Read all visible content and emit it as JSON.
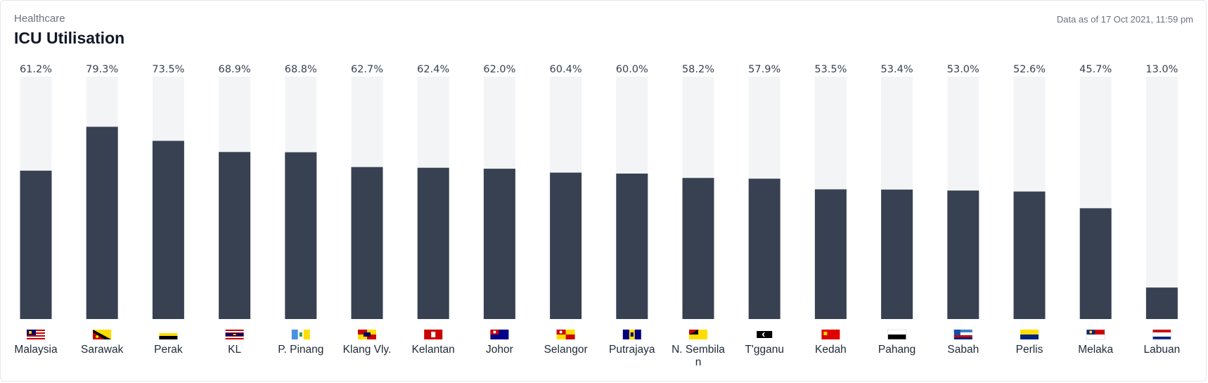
{
  "header": {
    "category": "Healthcare",
    "title": "ICU Utilisation",
    "timestamp": "Data as of 17 Oct 2021, 11:59 pm"
  },
  "colors": {
    "bar_fill": "#374151",
    "bar_track": "#f3f4f6"
  },
  "chart_data": {
    "type": "bar",
    "ylim": [
      0,
      100
    ],
    "unit": "%",
    "grid": false,
    "categories": [
      "Malaysia",
      "Sarawak",
      "Perak",
      "KL",
      "P. Pinang",
      "Klang Vly.",
      "Kelantan",
      "Johor",
      "Selangor",
      "Putrajaya",
      "N. Sembilan",
      "T'gganu",
      "Kedah",
      "Pahang",
      "Sabah",
      "Perlis",
      "Melaka",
      "Labuan"
    ],
    "values": [
      61.2,
      79.3,
      73.5,
      68.9,
      68.8,
      62.7,
      62.4,
      62.0,
      60.4,
      60.0,
      58.2,
      57.9,
      53.5,
      53.4,
      53.0,
      52.6,
      45.7,
      13.0
    ],
    "value_labels": [
      "61.2%",
      "79.3%",
      "73.5%",
      "68.9%",
      "68.8%",
      "62.7%",
      "62.4%",
      "62.0%",
      "60.4%",
      "60.0%",
      "58.2%",
      "57.9%",
      "53.5%",
      "53.4%",
      "53.0%",
      "52.6%",
      "45.7%",
      "13.0%"
    ],
    "flag_icons": [
      "malaysia-flag-icon",
      "sarawak-flag-icon",
      "perak-flag-icon",
      "kl-flag-icon",
      "penang-flag-icon",
      "klang-valley-flag-icon",
      "kelantan-flag-icon",
      "johor-flag-icon",
      "selangor-flag-icon",
      "putrajaya-flag-icon",
      "negeri-sembilan-flag-icon",
      "terengganu-flag-icon",
      "kedah-flag-icon",
      "pahang-flag-icon",
      "sabah-flag-icon",
      "perlis-flag-icon",
      "melaka-flag-icon",
      "labuan-flag-icon"
    ]
  }
}
